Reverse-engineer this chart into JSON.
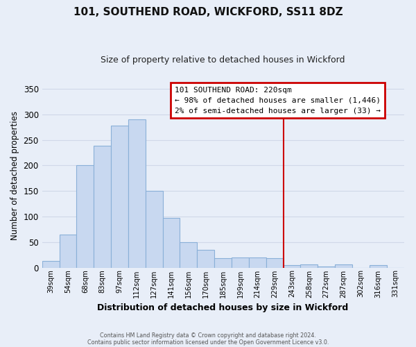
{
  "title": "101, SOUTHEND ROAD, WICKFORD, SS11 8DZ",
  "subtitle": "Size of property relative to detached houses in Wickford",
  "xlabel": "Distribution of detached houses by size in Wickford",
  "ylabel": "Number of detached properties",
  "bar_labels": [
    "39sqm",
    "54sqm",
    "68sqm",
    "83sqm",
    "97sqm",
    "112sqm",
    "127sqm",
    "141sqm",
    "156sqm",
    "170sqm",
    "185sqm",
    "199sqm",
    "214sqm",
    "229sqm",
    "243sqm",
    "258sqm",
    "272sqm",
    "287sqm",
    "302sqm",
    "316sqm",
    "331sqm"
  ],
  "bar_values": [
    13,
    65,
    200,
    238,
    278,
    290,
    150,
    97,
    49,
    35,
    18,
    20,
    20,
    18,
    5,
    6,
    2,
    6,
    0,
    5,
    0
  ],
  "bar_color": "#c8d8f0",
  "bar_edge_color": "#8ab0d8",
  "ylim": [
    0,
    360
  ],
  "yticks": [
    0,
    50,
    100,
    150,
    200,
    250,
    300,
    350
  ],
  "vline_x_index": 13.5,
  "vline_color": "#cc0000",
  "annotation_title": "101 SOUTHEND ROAD: 220sqm",
  "annotation_line1": "← 98% of detached houses are smaller (1,446)",
  "annotation_line2": "2% of semi-detached houses are larger (33) →",
  "annotation_box_color": "#ffffff",
  "annotation_box_edge": "#cc0000",
  "footer1": "Contains HM Land Registry data © Crown copyright and database right 2024.",
  "footer2": "Contains public sector information licensed under the Open Government Licence v3.0.",
  "background_color": "#e8eef8",
  "grid_color": "#d0d8e8"
}
